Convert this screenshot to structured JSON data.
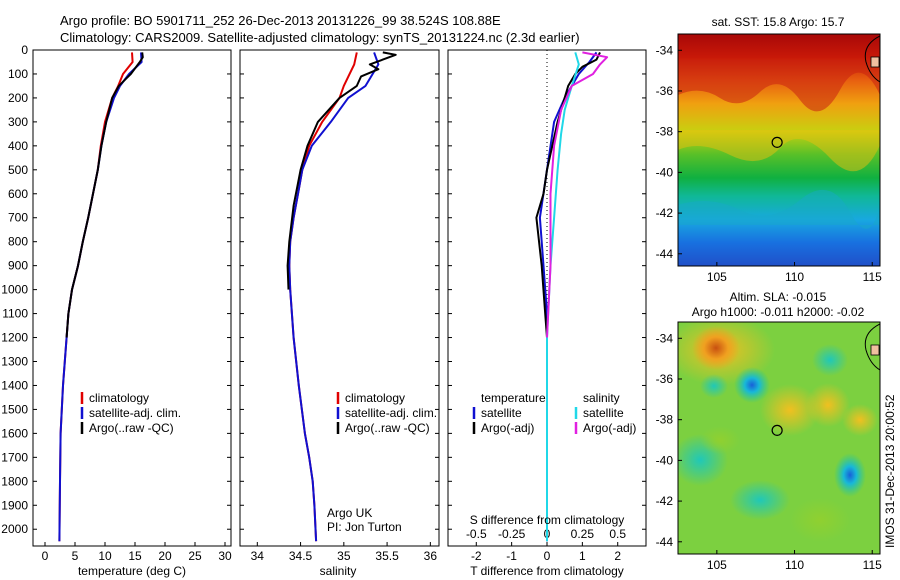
{
  "header": {
    "line1": "Argo profile: BO 5901711_252 26-Dec-2013 20131226_99 38.524S 108.88E",
    "line2": "Climatology: CARS2009. Satellite-adjusted climatology: synTS_20131224.nc (2.3d earlier)"
  },
  "side_label": "IMOS 31-Dec-2013 20:00:52",
  "colors": {
    "climatology": "#e00000",
    "satellite": "#1010d0",
    "argo": "#000000",
    "sal_satellite": "#20d8e8",
    "sal_argo": "#e020e0"
  },
  "chart_data": [
    {
      "id": "temperature",
      "type": "line",
      "xlabel": "temperature (deg C)",
      "xlim": [
        -2,
        31
      ],
      "ylim": [
        2070,
        0
      ],
      "y_reversed": true,
      "xticks": [
        0,
        5,
        10,
        15,
        20,
        25,
        30
      ],
      "yticks": [
        0,
        100,
        200,
        300,
        400,
        500,
        600,
        700,
        800,
        900,
        1000,
        1100,
        1200,
        1300,
        1400,
        1500,
        1600,
        1700,
        1800,
        1900,
        2000
      ],
      "legend": [
        "climatology",
        "satellite-adj. clim.",
        "Argo(..raw -QC)"
      ],
      "series": [
        {
          "name": "climatology",
          "color": "#e00000",
          "x": [
            14.5,
            14.6,
            13.0,
            12.2,
            11.2,
            10.0,
            9.3,
            8.8,
            8.0,
            7.2,
            6.3,
            5.5,
            4.5,
            3.9,
            3.6,
            3.3,
            3.0,
            2.8,
            2.6,
            2.5,
            2.4
          ],
          "y": [
            10,
            50,
            100,
            150,
            200,
            300,
            400,
            500,
            600,
            700,
            800,
            900,
            1000,
            1100,
            1200,
            1300,
            1400,
            1500,
            1600,
            1800,
            2050
          ]
        },
        {
          "name": "satellite-adj. clim.",
          "color": "#1010d0",
          "x": [
            16.0,
            16.1,
            14.0,
            12.5,
            11.5,
            10.2,
            9.4,
            8.8,
            8.0,
            7.2,
            6.3,
            5.5,
            4.5,
            3.9,
            3.6,
            3.3,
            3.0,
            2.8,
            2.6,
            2.5,
            2.4
          ],
          "y": [
            10,
            50,
            100,
            150,
            200,
            300,
            400,
            500,
            600,
            700,
            800,
            900,
            1000,
            1100,
            1200,
            1300,
            1400,
            1500,
            1600,
            1800,
            2050
          ]
        },
        {
          "name": "Argo(..raw -QC)",
          "color": "#000000",
          "x": [
            16.2,
            16.3,
            15.8,
            14.3,
            12.3,
            11.2,
            10.2,
            9.4,
            8.8,
            8.0,
            7.2,
            6.3,
            5.5,
            4.5,
            3.9,
            3.6
          ],
          "y": [
            10,
            30,
            50,
            100,
            150,
            200,
            300,
            400,
            500,
            600,
            700,
            800,
            900,
            1000,
            1100,
            1200
          ]
        }
      ]
    },
    {
      "id": "salinity",
      "type": "line",
      "xlabel": "salinity",
      "xlim": [
        33.8,
        36.1
      ],
      "ylim": [
        2070,
        0
      ],
      "y_reversed": true,
      "xticks": [
        34,
        34.5,
        35,
        35.5,
        36
      ],
      "legend": [
        "climatology",
        "satellite-adj. clim.",
        "Argo(..raw -QC)"
      ],
      "annotation": [
        "Argo UK",
        "PI: Jon Turton"
      ],
      "series": [
        {
          "name": "climatology",
          "color": "#e00000",
          "x": [
            35.15,
            35.12,
            35.0,
            34.95,
            34.75,
            34.6,
            34.52,
            34.47,
            34.42,
            34.38,
            34.37,
            34.38,
            34.42,
            34.48,
            34.55,
            34.6,
            34.64,
            34.66,
            34.68
          ],
          "y": [
            10,
            60,
            150,
            200,
            300,
            400,
            500,
            600,
            700,
            800,
            900,
            1000,
            1200,
            1400,
            1600,
            1700,
            1800,
            1900,
            2050
          ]
        },
        {
          "name": "satellite-adj. clim.",
          "color": "#1010d0",
          "x": [
            35.35,
            35.4,
            35.25,
            35.05,
            34.85,
            34.63,
            34.52,
            34.47,
            34.42,
            34.38,
            34.37,
            34.38,
            34.42,
            34.48,
            34.55,
            34.6,
            34.64,
            34.66,
            34.68
          ],
          "y": [
            10,
            60,
            150,
            200,
            300,
            400,
            500,
            600,
            700,
            800,
            900,
            1000,
            1200,
            1400,
            1600,
            1700,
            1800,
            1900,
            2050
          ]
        },
        {
          "name": "Argo(..raw -QC)",
          "color": "#000000",
          "x": [
            35.45,
            35.6,
            35.45,
            35.3,
            35.4,
            35.2,
            35.15,
            34.95,
            34.7,
            34.58,
            34.5,
            34.42,
            34.37,
            34.35,
            34.36
          ],
          "y": [
            10,
            20,
            40,
            60,
            80,
            110,
            150,
            200,
            300,
            400,
            500,
            650,
            800,
            900,
            1000
          ]
        }
      ]
    },
    {
      "id": "difference",
      "type": "line",
      "xlabel": "T difference from climatology",
      "xlabel_top": "S difference from climatology",
      "xlim": [
        -2.8,
        2.8
      ],
      "ylim": [
        2070,
        0
      ],
      "y_reversed": true,
      "xticks": [
        -2,
        -1,
        0,
        1,
        2
      ],
      "xticks_top": [
        "-0.5",
        "-0.25",
        "0",
        "0.25",
        "0.5"
      ],
      "legend_temperature_title": "temperature",
      "legend_salinity_title": "salinity",
      "legend_temperature": [
        "satellite",
        "Argo(-adj)"
      ],
      "legend_salinity": [
        "satellite",
        "Argo(-adj)"
      ],
      "series": [
        {
          "name": "temperature satellite",
          "color": "#1010d0",
          "x": [
            1.4,
            1.2,
            0.9,
            0.5,
            0.2,
            0.0,
            -0.2,
            -0.1,
            0.0,
            0.0,
            0.0,
            0.0
          ],
          "y": [
            10,
            50,
            100,
            200,
            300,
            500,
            700,
            900,
            1100,
            1300,
            1600,
            2050
          ]
        },
        {
          "name": "temperature Argo(-adj)",
          "color": "#000000",
          "x": [
            1.5,
            1.4,
            1.0,
            0.8,
            0.6,
            0.3,
            0.0,
            -0.1,
            -0.3,
            -0.15,
            -0.05,
            0.0
          ],
          "y": [
            10,
            40,
            70,
            100,
            150,
            300,
            500,
            600,
            700,
            900,
            1100,
            1200
          ]
        },
        {
          "name": "salinity satellite",
          "color": "#20d8e8",
          "x": [
            0.8,
            0.9,
            0.7,
            0.5,
            0.4,
            0.3,
            0.2,
            0.1,
            0.0,
            0.0,
            0.0
          ],
          "y": [
            10,
            60,
            150,
            250,
            350,
            500,
            700,
            900,
            1200,
            1600,
            2050
          ]
        },
        {
          "name": "salinity Argo(-adj)",
          "color": "#e020e0",
          "x": [
            1.0,
            1.7,
            1.5,
            1.3,
            0.7,
            0.4,
            0.2,
            0.1,
            0.1,
            0.0
          ],
          "y": [
            10,
            30,
            60,
            100,
            150,
            250,
            400,
            600,
            900,
            1200
          ]
        }
      ]
    },
    {
      "id": "sst_map",
      "type": "heatmap",
      "title": "sat. SST: 15.8 Argo: 15.7",
      "xticks": [
        105,
        110,
        115
      ],
      "yticks": [
        -34,
        -36,
        -38,
        -40,
        -42,
        -44
      ],
      "xlim": [
        102.5,
        115.5
      ],
      "ylim": [
        -44.6,
        -33.2
      ],
      "marker": {
        "lon": 108.88,
        "lat": -38.524
      }
    },
    {
      "id": "sla_map",
      "type": "heatmap",
      "title_line1": "Altim. SLA: -0.015",
      "title_line2": "Argo h1000: -0.011 h2000: -0.02",
      "xticks": [
        105,
        110,
        115
      ],
      "yticks": [
        -34,
        -36,
        -38,
        -40,
        -42,
        -44
      ],
      "xlim": [
        102.5,
        115.5
      ],
      "ylim": [
        -44.6,
        -33.2
      ],
      "marker": {
        "lon": 108.88,
        "lat": -38.524
      }
    }
  ]
}
